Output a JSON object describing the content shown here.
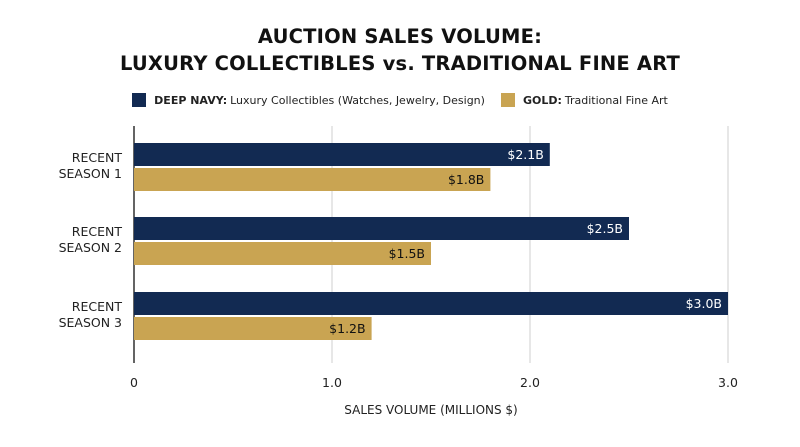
{
  "chart_data": {
    "type": "bar",
    "orientation": "horizontal",
    "title_lines": [
      "AUCTION SALES VOLUME:",
      "LUXURY COLLECTIBLES vs. TRADITIONAL FINE ART"
    ],
    "xlabel": "SALES VOLUME (MILLIONS $)",
    "ylabel": "",
    "xlim": [
      0,
      3.0
    ],
    "x_ticks": [
      "0",
      "1.0",
      "2.0",
      "3.0"
    ],
    "x_tick_values": [
      0,
      1.0,
      2.0,
      3.0
    ],
    "grid": true,
    "legend_position": "top-center",
    "categories": [
      [
        "RECENT",
        "SEASON 1"
      ],
      [
        "RECENT",
        "SEASON 2"
      ],
      [
        "RECENT",
        "SEASON 3"
      ]
    ],
    "series": [
      {
        "legend_key": "DEEP NAVY:",
        "legend_text": "Luxury Collectibles (Watches, Jewelry, Design)",
        "color": "#122a52",
        "label_color": "#ffffff",
        "values": [
          2.1,
          2.5,
          3.0
        ],
        "labels": [
          "$2.1B",
          "$2.5B",
          "$3.0B"
        ]
      },
      {
        "legend_key": "GOLD:",
        "legend_text": "Traditional Fine Art",
        "color": "#c9a452",
        "label_color": "#111111",
        "values": [
          1.8,
          1.5,
          1.2
        ],
        "labels": [
          "$1.8B",
          "$1.5B",
          "$1.2B"
        ]
      }
    ]
  }
}
